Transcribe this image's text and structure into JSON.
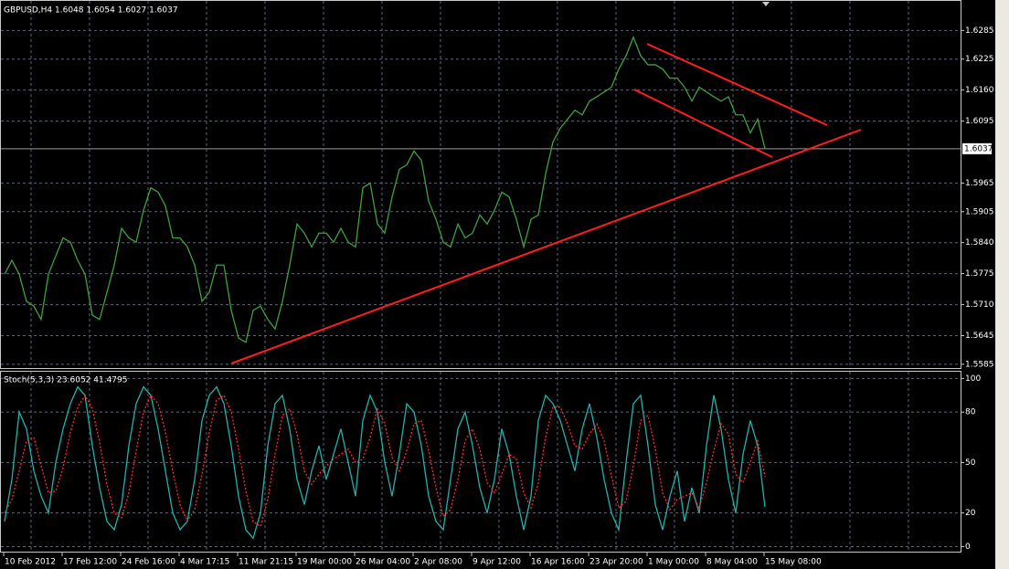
{
  "chart_data": [
    {
      "type": "line",
      "title": "GBPUSD,H4 1.6048 1.6054 1.6027 1.6037",
      "categories": [
        "10 Feb 2012",
        null,
        null,
        null,
        null,
        null,
        null,
        null,
        "17 Feb 12:00",
        null,
        null,
        null,
        null,
        null,
        null,
        null,
        "24 Feb 16:00",
        null,
        null,
        null,
        null,
        null,
        null,
        null,
        "4 Mar 17:15",
        null,
        null,
        null,
        null,
        null,
        null,
        null,
        "11 Mar 21:15",
        null,
        null,
        null,
        null,
        null,
        null,
        null,
        "19 Mar 00:00",
        null,
        null,
        null,
        null,
        null,
        null,
        null,
        "26 Mar 04:00",
        null,
        null,
        null,
        null,
        null,
        null,
        null,
        "2 Apr 08:00",
        null,
        null,
        null,
        null,
        null,
        null,
        null,
        "9 Apr 12:00",
        null,
        null,
        null,
        null,
        null,
        null,
        null,
        "16 Apr 16:00",
        null,
        null,
        null,
        null,
        null,
        null,
        null,
        "23 Apr 20:00",
        null,
        null,
        null,
        null,
        null,
        null,
        null,
        "1 May 00:00",
        null,
        null,
        null,
        null,
        null,
        null,
        null,
        "8 May 04:00",
        null,
        null,
        null,
        null,
        null,
        null,
        null,
        "15 May 08:00"
      ],
      "series": [
        {
          "color": "#3f9f3f",
          "values": [
            1.5774,
            1.5803,
            1.5774,
            1.5717,
            1.5707,
            1.5679,
            1.5774,
            1.5812,
            1.585,
            1.5841,
            1.5803,
            1.5774,
            1.5688,
            1.5679,
            1.5736,
            1.5793,
            1.587,
            1.585,
            1.5841,
            1.5908,
            1.5955,
            1.5946,
            1.5917,
            1.585,
            1.585,
            1.5831,
            1.5793,
            1.5717,
            1.5736,
            1.5793,
            1.5793,
            1.5698,
            1.564,
            1.5631,
            1.5698,
            1.5707,
            1.5679,
            1.5659,
            1.5717,
            1.5793,
            1.5879,
            1.586,
            1.5831,
            1.586,
            1.586,
            1.5841,
            1.587,
            1.5841,
            1.5831,
            1.5955,
            1.5965,
            1.5879,
            1.586,
            1.5936,
            1.5994,
            1.6003,
            1.6032,
            1.6013,
            1.5927,
            1.5889,
            1.5841,
            1.5831,
            1.5879,
            1.585,
            1.586,
            1.5898,
            1.5879,
            1.5908,
            1.5946,
            1.5936,
            1.5889,
            1.5831,
            1.5889,
            1.5898,
            1.5984,
            1.6051,
            1.608,
            1.6099,
            1.6118,
            1.6108,
            1.6137,
            1.6146,
            1.6156,
            1.6166,
            1.6204,
            1.6232,
            1.6271,
            1.6232,
            1.6213,
            1.6213,
            1.6204,
            1.6185,
            1.6185,
            1.6166,
            1.6137,
            1.6166,
            1.6156,
            1.6146,
            1.6137,
            1.6146,
            1.6108,
            1.6108,
            1.607,
            1.6099,
            1.6037
          ]
        }
      ],
      "ylim": [
        1.5577,
        1.6347
      ],
      "yticks": [
        1.5585,
        1.5645,
        {
          "value": 1.571,
          "label": "1.5710"
        },
        1.5775,
        {
          "value": 1.584,
          "label": "1.5840"
        },
        1.5905,
        1.5965,
        1.6095,
        {
          "value": 1.616,
          "label": "1.6160"
        },
        1.6225,
        1.6285
      ],
      "current_price": 1.6037,
      "grid": true
    },
    {
      "type": "line",
      "title": "Stoch(5,3,3) 23.6052 41.4795",
      "series": [
        {
          "color": "#20b2aa",
          "values": [
            15,
            40,
            80,
            70,
            45,
            30,
            20,
            50,
            70,
            85,
            95,
            90,
            60,
            35,
            15,
            10,
            25,
            60,
            85,
            95,
            90,
            70,
            45,
            20,
            10,
            15,
            40,
            75,
            90,
            95,
            85,
            60,
            30,
            10,
            5,
            20,
            60,
            85,
            90,
            70,
            40,
            25,
            45,
            60,
            40,
            55,
            70,
            50,
            30,
            75,
            90,
            80,
            50,
            30,
            55,
            85,
            80,
            60,
            30,
            15,
            10,
            40,
            70,
            80,
            60,
            35,
            20,
            40,
            70,
            55,
            30,
            10,
            30,
            75,
            90,
            85,
            75,
            60,
            45,
            70,
            85,
            65,
            40,
            20,
            10,
            50,
            85,
            90,
            60,
            25,
            10,
            30,
            45,
            15,
            35,
            20,
            60,
            90,
            70,
            40,
            20,
            55,
            75,
            60,
            23.6052
          ]
        },
        {
          "color": "#ff2a2a",
          "dash": true,
          "values": [
            20,
            28,
            45,
            63,
            65,
            48,
            32,
            33,
            47,
            68,
            83,
            90,
            82,
            62,
            37,
            20,
            17,
            32,
            57,
            80,
            90,
            85,
            68,
            45,
            25,
            15,
            22,
            43,
            68,
            87,
            90,
            80,
            58,
            33,
            15,
            12,
            28,
            55,
            78,
            82,
            67,
            45,
            37,
            43,
            48,
            52,
            55,
            58,
            50,
            52,
            65,
            82,
            73,
            53,
            45,
            57,
            73,
            75,
            57,
            35,
            18,
            22,
            40,
            63,
            70,
            58,
            38,
            32,
            43,
            55,
            52,
            32,
            23,
            38,
            65,
            83,
            83,
            73,
            60,
            58,
            67,
            73,
            63,
            42,
            23,
            27,
            48,
            75,
            78,
            58,
            32,
            22,
            28,
            30,
            32,
            23,
            38,
            57,
            73,
            67,
            43,
            38,
            50,
            63,
            41.4795
          ]
        }
      ],
      "ylim": [
        -3,
        104
      ],
      "yticks": [
        0,
        20,
        50,
        80,
        100
      ],
      "grid": true
    }
  ]
}
